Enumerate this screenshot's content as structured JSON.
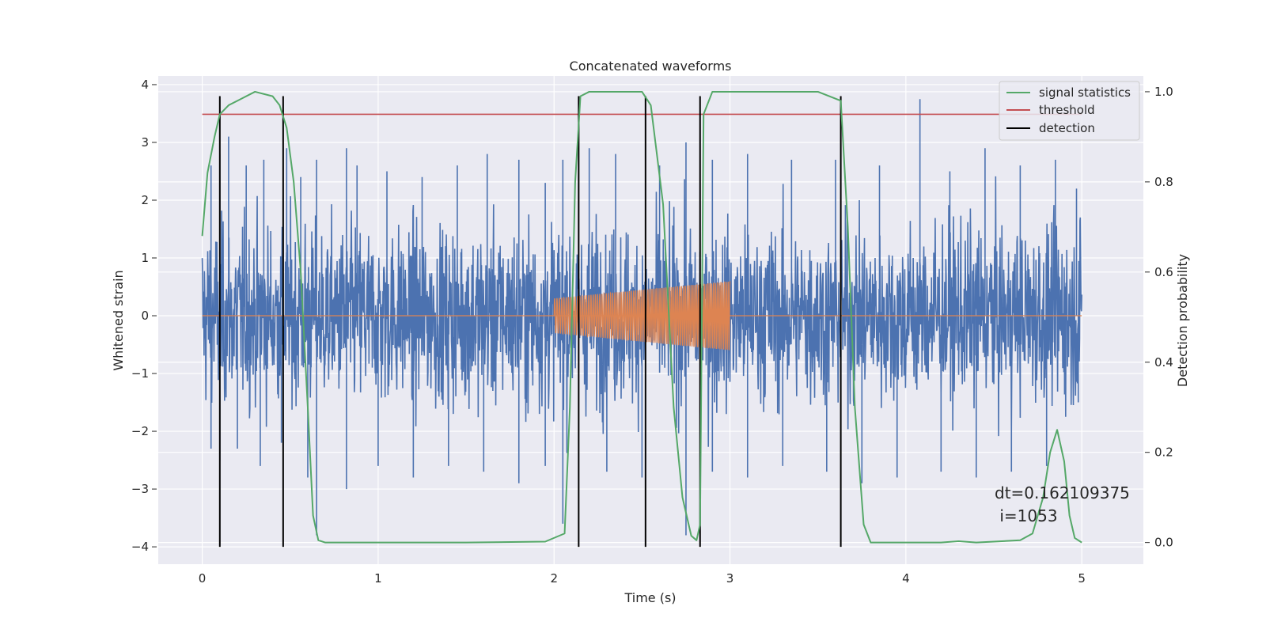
{
  "chart_data": {
    "type": "line",
    "title": "Concatenated waveforms",
    "xlabel": "Time (s)",
    "ylabel": "Whitened strain",
    "y2label": "Detection probability",
    "xlim": [
      -0.25,
      5.35
    ],
    "ylim": [
      -4.3,
      4.15
    ],
    "y2lim": [
      -0.048,
      1.035
    ],
    "xticks": [
      0,
      1,
      2,
      3,
      4,
      5
    ],
    "yticks": [
      -4,
      -3,
      -2,
      -1,
      0,
      1,
      2,
      3,
      4
    ],
    "y2ticks": [
      0.0,
      0.2,
      0.4,
      0.6,
      0.8,
      1.0
    ],
    "y2tick_labels": [
      "0.0",
      "0.2",
      "0.4",
      "0.6",
      "0.8",
      "1.0"
    ],
    "grid": true,
    "colors": {
      "strain": "#4c72b0",
      "injection": "#dd8452",
      "signal": "#55a868",
      "threshold": "#c44e52",
      "detection": "#000000",
      "plot_bg": "#eaeaf2",
      "grid": "#ffffff"
    },
    "strain": {
      "name": "whitened strain",
      "x_range": [
        0,
        5
      ],
      "envelope": 0.75,
      "peaks_x": [
        0.05,
        0.1,
        0.15,
        0.25,
        0.35,
        0.48,
        0.56,
        0.65,
        0.82,
        0.88,
        1.05,
        1.25,
        1.45,
        1.62,
        1.8,
        1.95,
        2.05,
        2.2,
        2.35,
        2.6,
        2.75,
        2.9,
        3.1,
        3.35,
        3.6,
        3.85,
        4.08,
        4.25,
        4.45,
        4.65,
        4.85,
        4.97
      ],
      "peaks_y": [
        2.6,
        2.8,
        3.1,
        2.6,
        2.7,
        2.9,
        2.4,
        2.7,
        2.9,
        2.6,
        2.5,
        2.4,
        2.6,
        2.8,
        2.7,
        2.3,
        2.7,
        2.9,
        2.8,
        2.6,
        3.0,
        2.7,
        2.8,
        2.7,
        2.7,
        2.6,
        3.75,
        2.5,
        2.9,
        2.6,
        2.7,
        2.2
      ],
      "troughs_x": [
        0.05,
        0.1,
        0.2,
        0.33,
        0.45,
        0.6,
        0.65,
        0.82,
        1.0,
        1.2,
        1.4,
        1.6,
        1.8,
        1.95,
        2.05,
        2.3,
        2.5,
        2.75,
        2.9,
        3.1,
        3.3,
        3.55,
        3.75,
        3.95,
        4.2,
        4.4,
        4.6,
        4.8,
        4.98
      ],
      "troughs_y": [
        -2.3,
        -2.5,
        -2.3,
        -2.6,
        -2.2,
        -2.8,
        -3.8,
        -3.0,
        -2.6,
        -2.8,
        -2.6,
        -2.7,
        -2.9,
        -2.6,
        -3.6,
        -2.7,
        -2.8,
        -3.8,
        -2.7,
        -2.8,
        -2.6,
        -2.7,
        -2.9,
        -2.8,
        -2.7,
        -2.8,
        -2.7,
        -2.6,
        -1.5
      ]
    },
    "injection": {
      "name": "injected waveform",
      "x_start": 2.0,
      "x_end": 3.0,
      "amplitude_start": 0.3,
      "amplitude_end": 0.6,
      "cycles": 75
    },
    "series": [
      {
        "name": "signal statistics",
        "x": [
          0.0,
          0.03,
          0.07,
          0.1,
          0.15,
          0.2,
          0.3,
          0.4,
          0.44,
          0.48,
          0.52,
          0.56,
          0.6,
          0.63,
          0.66,
          0.7,
          1.0,
          1.5,
          1.95,
          2.06,
          2.09,
          2.12,
          2.15,
          2.2,
          2.5,
          2.55,
          2.62,
          2.68,
          2.73,
          2.78,
          2.81,
          2.83,
          2.85,
          2.9,
          3.5,
          3.63,
          3.67,
          3.71,
          3.76,
          3.8,
          4.2,
          4.3,
          4.4,
          4.65,
          4.72,
          4.78,
          4.82,
          4.86,
          4.9,
          4.93,
          4.96,
          5.0
        ],
        "values": [
          0.68,
          0.82,
          0.9,
          0.95,
          0.97,
          0.98,
          1.0,
          0.99,
          0.97,
          0.92,
          0.8,
          0.6,
          0.3,
          0.06,
          0.005,
          0.0,
          0.0,
          0.0,
          0.002,
          0.02,
          0.3,
          0.8,
          0.99,
          1.0,
          1.0,
          0.97,
          0.75,
          0.3,
          0.1,
          0.015,
          0.005,
          0.04,
          0.95,
          1.0,
          1.0,
          0.98,
          0.7,
          0.3,
          0.04,
          0.0,
          0.0,
          0.003,
          0.0,
          0.005,
          0.02,
          0.1,
          0.2,
          0.25,
          0.18,
          0.06,
          0.01,
          0.0
        ]
      },
      {
        "name": "threshold",
        "x": [
          0.0,
          5.0
        ],
        "values": [
          0.95,
          0.95
        ]
      }
    ],
    "detections": [
      0.1,
      0.46,
      2.14,
      2.52,
      2.83,
      3.63
    ],
    "detection_ymin": -4.0,
    "detection_ymax": 3.8,
    "legend": {
      "location": "top-right",
      "entries": [
        "signal statistics",
        "threshold",
        "detection"
      ]
    },
    "annotation": {
      "line1": "dt=0.162109375",
      "line2": " i=1053"
    }
  }
}
